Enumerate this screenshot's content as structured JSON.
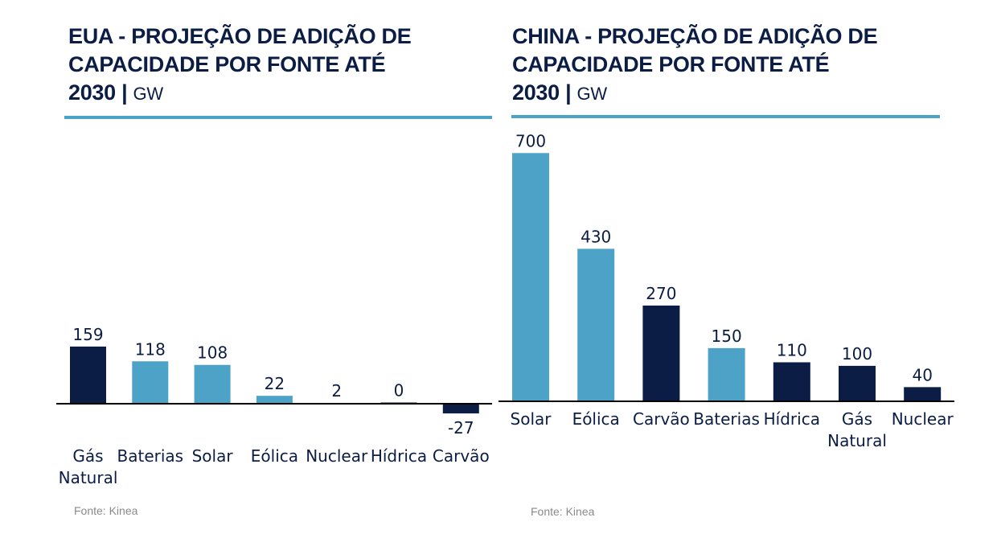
{
  "colors": {
    "dark": "#0b1d45",
    "light": "#4da3c7",
    "source_text": "#8a8a8a"
  },
  "chart_data": [
    {
      "type": "bar",
      "title_bold": "EUA - PROJEÇÃO DE ADIÇÃO DE CAPACIDADE POR FONTE ATÉ 2030 |",
      "title_lines": [
        "EUA - PROJEÇÃO DE ADIÇÃO DE",
        "CAPACIDADE POR FONTE ATÉ",
        "2030 |"
      ],
      "unit": "GW",
      "categories": [
        "Gás Natural",
        "Baterias",
        "Solar",
        "Eólica",
        "Nuclear",
        "Hídrica",
        "Carvão"
      ],
      "category_lines": [
        [
          "Gás",
          "Natural"
        ],
        [
          "Baterias"
        ],
        [
          "Solar"
        ],
        [
          "Eólica"
        ],
        [
          "Nuclear"
        ],
        [
          "Hídrica"
        ],
        [
          "Carvão"
        ]
      ],
      "values": [
        159,
        118,
        108,
        22,
        2,
        0,
        -27
      ],
      "value_labels": [
        "159",
        "118",
        "108",
        "22",
        "2",
        "0",
        "-27"
      ],
      "bar_colors": [
        "dark",
        "light",
        "light",
        "light",
        "dark",
        "dark",
        "dark"
      ],
      "ylim": [
        -27,
        159
      ],
      "xlabel": "",
      "ylabel": "",
      "grid": false,
      "legend": "none",
      "source": "Fonte: Kinea"
    },
    {
      "type": "bar",
      "title_bold": "CHINA - PROJEÇÃO DE ADIÇÃO DE CAPACIDADE POR FONTE ATÉ 2030 |",
      "title_lines": [
        "CHINA - PROJEÇÃO DE ADIÇÃO DE",
        "CAPACIDADE POR FONTE ATÉ",
        "2030 |"
      ],
      "unit": "GW",
      "categories": [
        "Solar",
        "Eólica",
        "Carvão",
        "Baterias",
        "Hídrica",
        "Gás Natural",
        "Nuclear"
      ],
      "category_lines": [
        [
          "Solar"
        ],
        [
          "Eólica"
        ],
        [
          "Carvão"
        ],
        [
          "Baterias"
        ],
        [
          "Hídrica"
        ],
        [
          "Gás",
          "Natural"
        ],
        [
          "Nuclear"
        ]
      ],
      "values": [
        700,
        430,
        270,
        150,
        110,
        100,
        40
      ],
      "value_labels": [
        "700",
        "430",
        "270",
        "150",
        "110",
        "100",
        "40"
      ],
      "bar_colors": [
        "light",
        "light",
        "dark",
        "light",
        "dark",
        "dark",
        "dark"
      ],
      "ylim": [
        0,
        700
      ],
      "xlabel": "",
      "ylabel": "",
      "grid": false,
      "legend": "none",
      "source": "Fonte: Kinea"
    }
  ]
}
